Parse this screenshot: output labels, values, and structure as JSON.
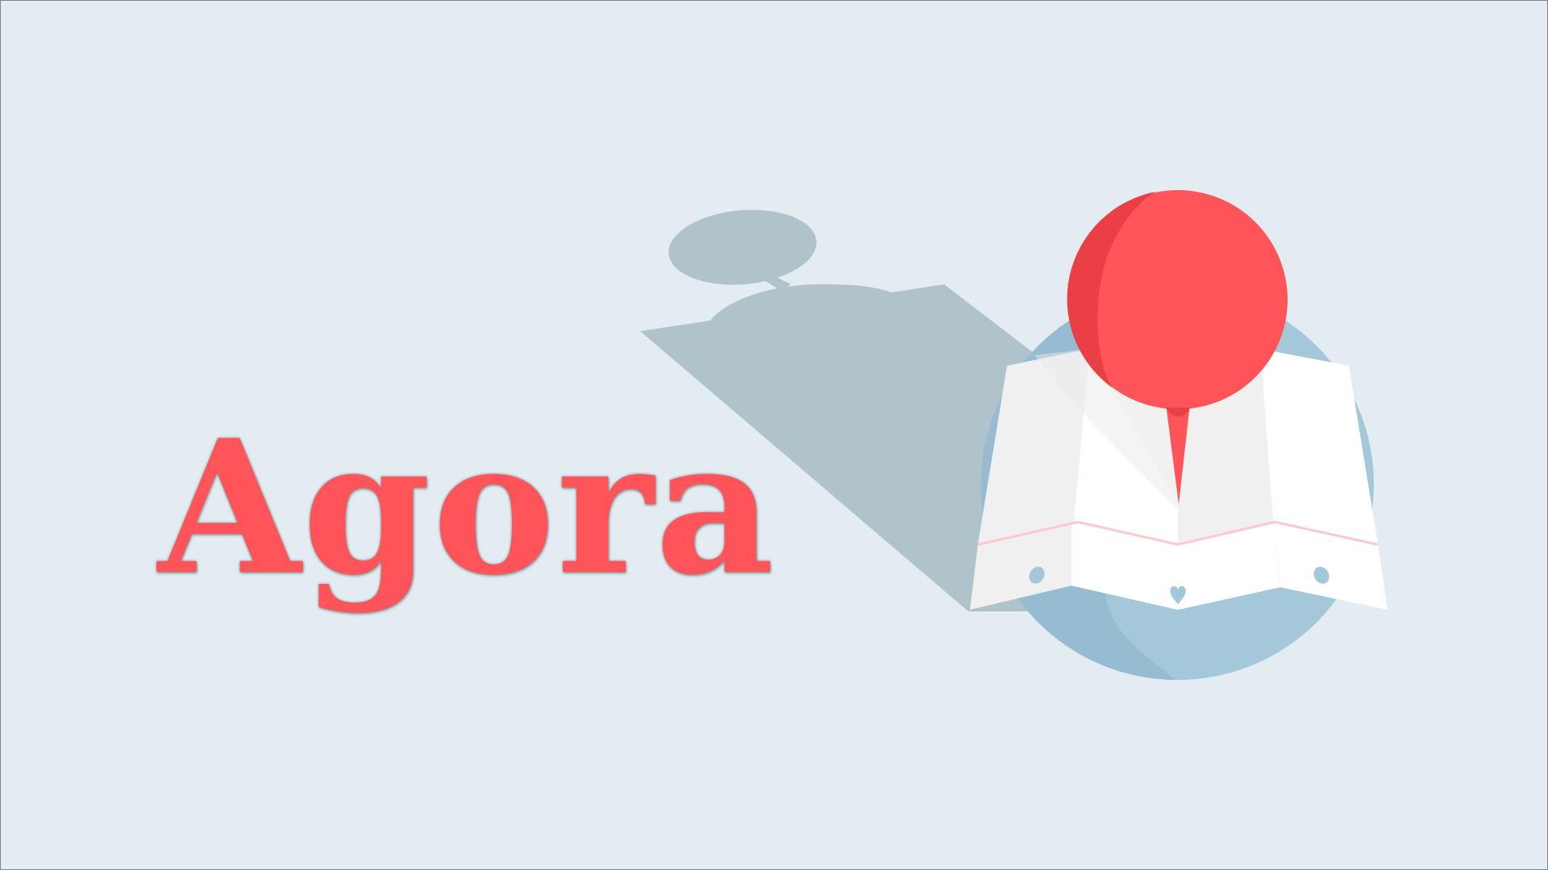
{
  "title": "Agora",
  "colors": {
    "background": "#e3ecf1",
    "brand_red": "#ff5459",
    "pin_shade": "#ea3f46",
    "shadow": "#b0c3cb",
    "globe_blue": "#a4c7da",
    "map_white": "#ffffff",
    "map_grey": "#f0f0f0"
  },
  "illustration": {
    "icons": [
      "map-pin-icon",
      "folded-map-icon",
      "globe-icon",
      "heart-icon",
      "speech-bubble-shadow"
    ]
  }
}
